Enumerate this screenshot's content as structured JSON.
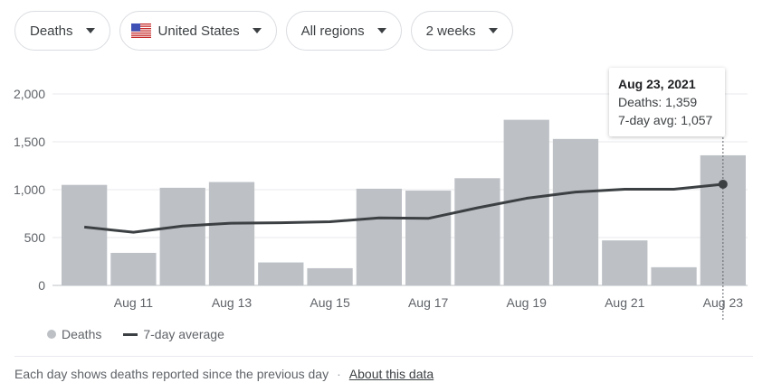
{
  "filters": {
    "metric": "Deaths",
    "country": "United States",
    "region": "All regions",
    "range": "2 weeks"
  },
  "colors": {
    "bar": "#bdc1c6",
    "avg_line": "#3c4043",
    "grid": "#e8eaed"
  },
  "icons": {
    "dropdown": "caret-down-icon",
    "country_flag": "us-flag-icon"
  },
  "tooltip": {
    "date": "Aug 23, 2021",
    "deaths": "Deaths: 1,359",
    "avg": "7-day avg: 1,057"
  },
  "legend": {
    "bars": "Deaths",
    "line": "7-day average"
  },
  "footer": {
    "note": "Each day shows deaths reported since the previous day",
    "separator": "·",
    "link": "About this data"
  },
  "chart_data": {
    "type": "bar",
    "categories": [
      "Aug 10",
      "Aug 11",
      "Aug 12",
      "Aug 13",
      "Aug 14",
      "Aug 15",
      "Aug 16",
      "Aug 17",
      "Aug 18",
      "Aug 19",
      "Aug 20",
      "Aug 21",
      "Aug 22",
      "Aug 23"
    ],
    "x_tick_labels": [
      "Aug 11",
      "Aug 13",
      "Aug 15",
      "Aug 17",
      "Aug 19",
      "Aug 21",
      "Aug 23"
    ],
    "y_ticks": [
      "0",
      "500",
      "1,000",
      "1,500",
      "2,000"
    ],
    "ylim": [
      0,
      2000
    ],
    "grid": true,
    "legend_position": "bottom-left",
    "series": [
      {
        "name": "Deaths",
        "type": "bar",
        "values": [
          1050,
          340,
          1020,
          1080,
          240,
          180,
          1010,
          990,
          1120,
          1730,
          1530,
          470,
          190,
          1359
        ]
      },
      {
        "name": "7-day average",
        "type": "line",
        "values": [
          610,
          555,
          620,
          650,
          655,
          665,
          705,
          700,
          810,
          910,
          975,
          1005,
          1005,
          1057
        ]
      }
    ],
    "highlight_index": 13
  }
}
